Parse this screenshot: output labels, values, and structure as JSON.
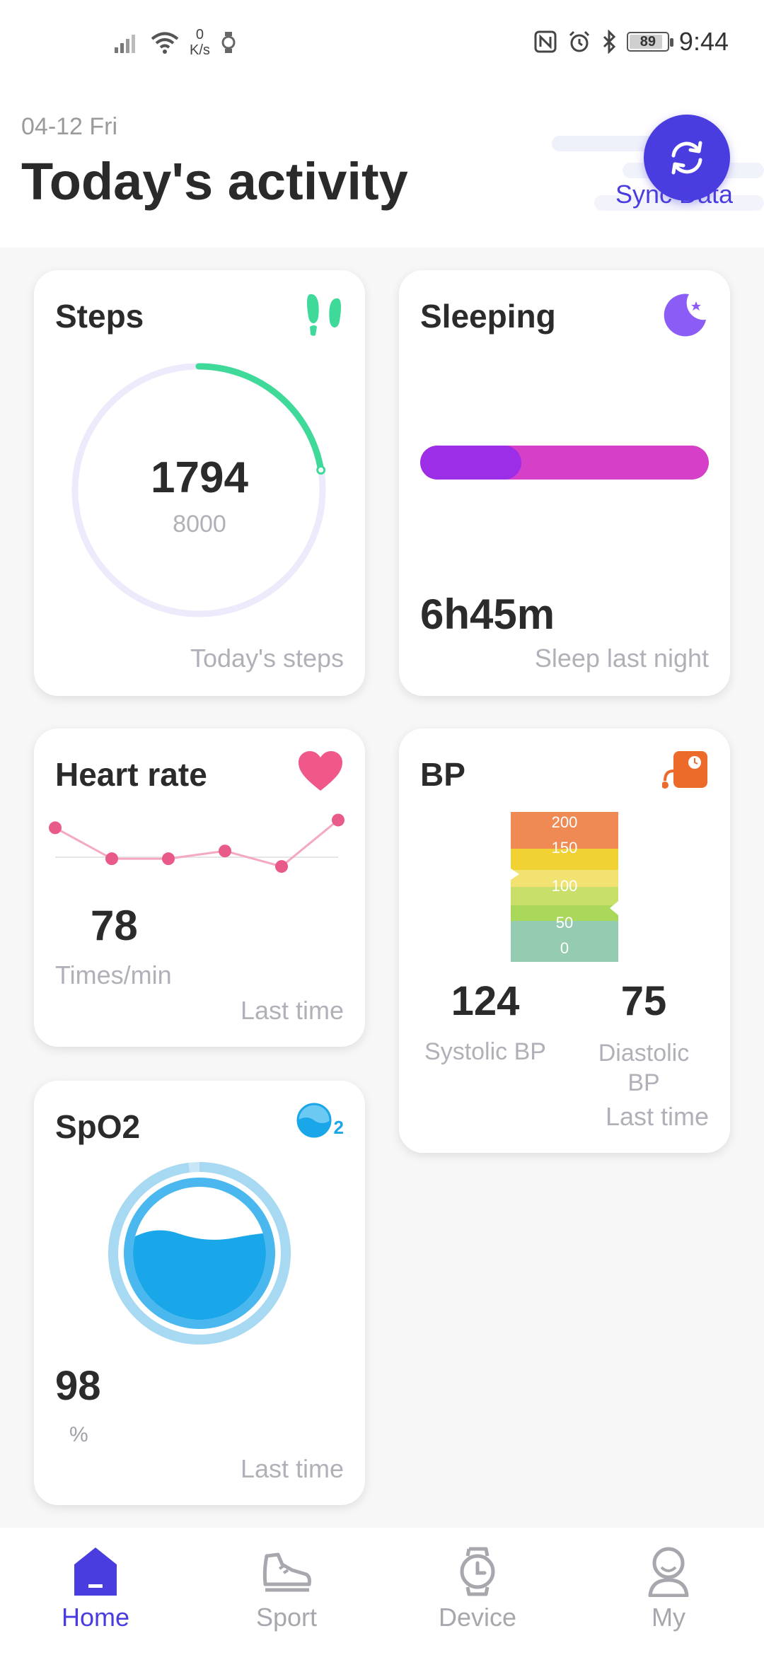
{
  "status_bar": {
    "net_speed_value": "0",
    "net_speed_unit": "K/s",
    "battery": "89",
    "battery_level": 0.89,
    "time": "9:44"
  },
  "header": {
    "date": "04-12 Fri",
    "title": "Today's activity",
    "sync_label": "Sync Data"
  },
  "steps": {
    "title": "Steps",
    "value": "1794",
    "goal": "8000",
    "progress": 0.224,
    "footer": "Today's steps"
  },
  "sleeping": {
    "title": "Sleeping",
    "deep_fraction": 0.35,
    "value": "6h45m",
    "footer": "Sleep last night"
  },
  "heart_rate": {
    "title": "Heart rate",
    "value": "78",
    "unit": "Times/min",
    "footer": "Last time",
    "sparkline": [
      82,
      74,
      74,
      76,
      72,
      84
    ]
  },
  "bp": {
    "title": "BP",
    "scale_labels": [
      "200",
      "150",
      "100",
      "50",
      "0"
    ],
    "systolic_value": "124",
    "systolic_label": "Systolic BP",
    "diastolic_value": "75",
    "diastolic_label": "Diastolic BP",
    "footer": "Last time"
  },
  "spo2": {
    "title": "SpO2",
    "icon_subscript": "2",
    "value": "98",
    "unit": "%",
    "footer": "Last time",
    "level": 0.98
  },
  "nav": {
    "items": [
      {
        "label": "Home",
        "icon": "home-icon",
        "active": true
      },
      {
        "label": "Sport",
        "icon": "shoe-icon",
        "active": false
      },
      {
        "label": "Device",
        "icon": "watch-icon",
        "active": false
      },
      {
        "label": "My",
        "icon": "person-icon",
        "active": false
      }
    ]
  },
  "colors": {
    "accent": "#4a3de0",
    "steps_green": "#3fd99a",
    "sleep_purple": "#9b2ee6",
    "sleep_pink": "#d63fc8",
    "heart_pink": "#f0588a",
    "bp_orange": "#ec6a2a",
    "spo2_blue": "#1aa7ea"
  }
}
